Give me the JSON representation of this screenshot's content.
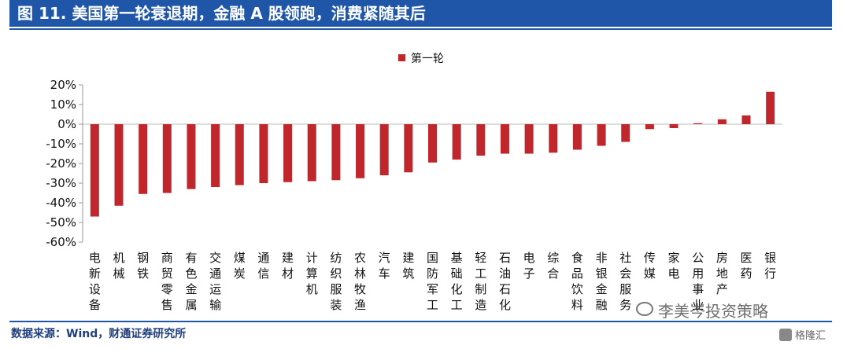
{
  "header": {
    "title": "图 11. 美国第一轮衰退期，金融 A 股领跑，消费紧随其后"
  },
  "footer": {
    "source": "数据来源：Wind，财通证券研究所"
  },
  "watermark": {
    "text": "李美岑投资策略",
    "brand": "格隆汇"
  },
  "colors": {
    "bar": "#c0272d",
    "title_bg": "#1f56a8"
  },
  "chart_data": {
    "type": "bar",
    "legend_position": "top-center",
    "grid": false,
    "ylim": [
      -60,
      20
    ],
    "yticks": [
      "20%",
      "10%",
      "0%",
      "-10%",
      "-20%",
      "-30%",
      "-40%",
      "-50%",
      "-60%"
    ],
    "ytick_values": [
      20,
      10,
      0,
      -10,
      -20,
      -30,
      -40,
      -50,
      -60
    ],
    "categories": [
      "电新设备",
      "机械",
      "钢铁",
      "商贸零售",
      "有色金属",
      "交通运输",
      "煤炭",
      "通信",
      "建材",
      "计算机",
      "纺织服装",
      "农林牧渔",
      "汽车",
      "建筑",
      "国防军工",
      "基础化工",
      "轻工制造",
      "石油石化",
      "电子",
      "综合",
      "食品饮料",
      "非银金融",
      "社会服务",
      "传媒",
      "家电",
      "公用事业",
      "房地产",
      "医药",
      "银行"
    ],
    "series": [
      {
        "name": "第一轮",
        "values": [
          -47,
          -41.5,
          -35.5,
          -35,
          -33,
          -32,
          -31,
          -30,
          -29.5,
          -29,
          -28.5,
          -27.5,
          -26,
          -24.5,
          -19.5,
          -18,
          -16,
          -15,
          -15,
          -14.5,
          -13,
          -11,
          -9,
          -2.5,
          -2,
          0.5,
          2.5,
          4.5,
          16.5
        ]
      }
    ]
  }
}
